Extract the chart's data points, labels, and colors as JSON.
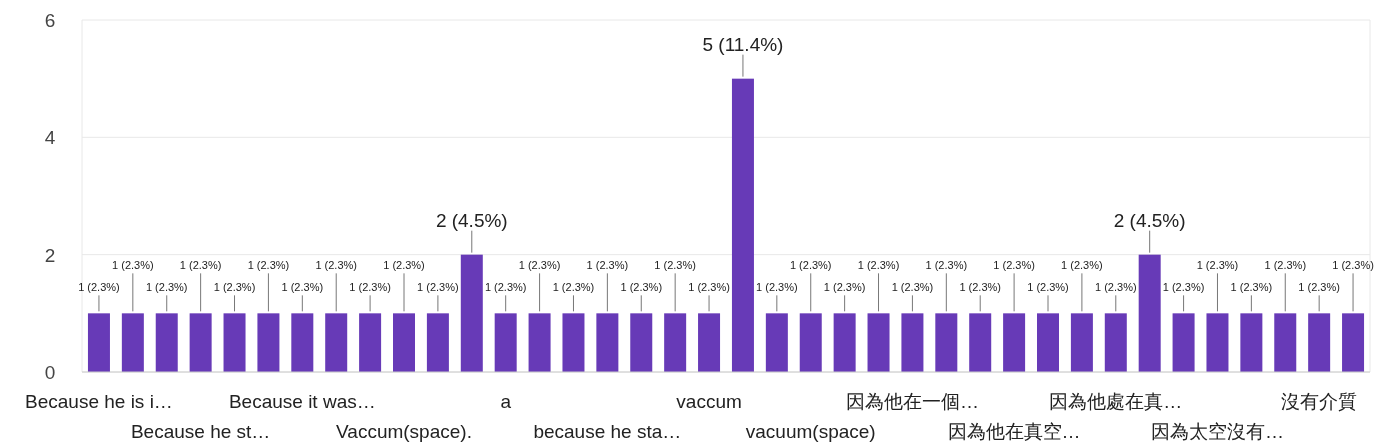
{
  "chart_data": {
    "type": "bar",
    "categories": [
      "Because he is i…",
      null,
      null,
      "Because he st…",
      null,
      null,
      "Because it was…",
      null,
      null,
      "Vaccum(space).",
      null,
      null,
      "a",
      null,
      null,
      "because he sta…",
      null,
      null,
      "vaccum",
      null,
      null,
      "vacuum(space)",
      null,
      null,
      "因為他在一個…",
      null,
      null,
      "因為他在真空…",
      null,
      null,
      "因為他處在真…",
      null,
      null,
      "因為太空沒有…",
      null,
      null,
      "沒有介質",
      null
    ],
    "values": [
      1,
      1,
      1,
      1,
      1,
      1,
      1,
      1,
      1,
      1,
      1,
      2,
      1,
      1,
      1,
      1,
      1,
      1,
      1,
      5,
      1,
      1,
      1,
      1,
      1,
      1,
      1,
      1,
      1,
      1,
      1,
      2,
      1,
      1,
      1,
      1,
      1,
      1
    ],
    "value_labels": [
      "1 (2.3%)",
      "1 (2.3%)",
      "1 (2.3%)",
      "1 (2.3%)",
      "1 (2.3%)",
      "1 (2.3%)",
      "1 (2.3%)",
      "1 (2.3%)",
      "1 (2.3%)",
      "1 (2.3%)",
      "1 (2.3%)",
      "2 (4.5%)",
      "1 (2.3%)",
      "1 (2.3%)",
      "1 (2.3%)",
      "1 (2.3%)",
      "1 (2.3%)",
      "1 (2.3%)",
      "1 (2.3%)",
      "5 (11.4%)",
      "1 (2.3%)",
      "1 (2.3%)",
      "1 (2.3%)",
      "1 (2.3%)",
      "1 (2.3%)",
      "1 (2.3%)",
      "1 (2.3%)",
      "1 (2.3%)",
      "1 (2.3%)",
      "1 (2.3%)",
      "1 (2.3%)",
      "2 (4.5%)",
      "1 (2.3%)",
      "1 (2.3%)",
      "1 (2.3%)",
      "1 (2.3%)",
      "1 (2.3%)",
      "1 (2.3%)"
    ],
    "color": "#673ab7",
    "ylim": [
      0,
      6
    ],
    "yticks": [
      0,
      2,
      4,
      6
    ],
    "grid": "y"
  }
}
